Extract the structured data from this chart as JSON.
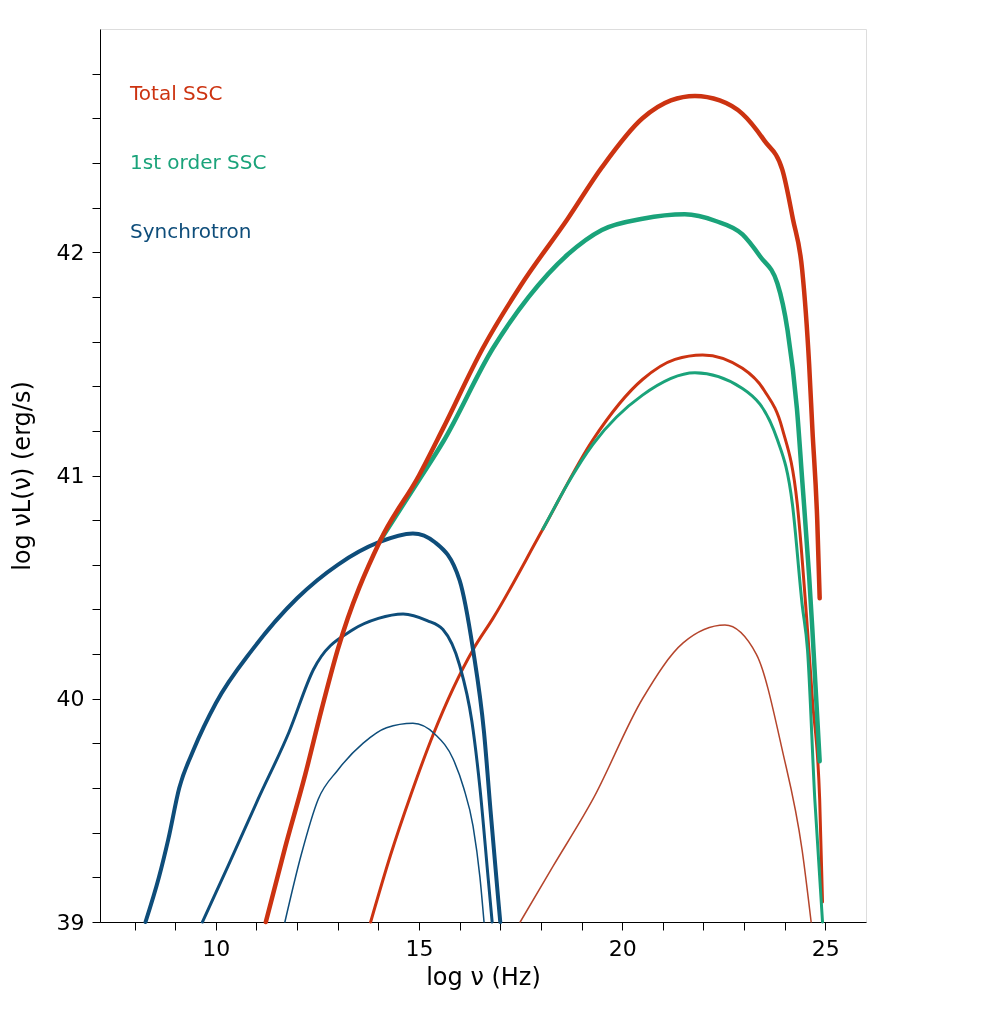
{
  "chart_data": {
    "type": "line",
    "xlabel": "log ν (Hz)",
    "ylabel": "log νL(ν) (erg/s)",
    "xlim": [
      7.15,
      26
    ],
    "ylim": [
      39,
      43
    ],
    "xticks": [
      {
        "value": 8,
        "label": null
      },
      {
        "value": 9,
        "label": null
      },
      10,
      {
        "value": 11,
        "label": null
      },
      {
        "value": 12,
        "label": null
      },
      {
        "value": 13,
        "label": null
      },
      {
        "value": 14,
        "label": null
      },
      15,
      {
        "value": 16,
        "label": null
      },
      {
        "value": 17,
        "label": null
      },
      {
        "value": 18,
        "label": null
      },
      {
        "value": 19,
        "label": null
      },
      20,
      {
        "value": 21,
        "label": null
      },
      {
        "value": 22,
        "label": null
      },
      {
        "value": 23,
        "label": null
      },
      {
        "value": 24,
        "label": null
      },
      25
    ],
    "yticks": [
      39,
      {
        "value": 39.2,
        "label": null
      },
      {
        "value": 39.4,
        "label": null
      },
      {
        "value": 39.6,
        "label": null
      },
      {
        "value": 39.8,
        "label": null
      },
      40,
      {
        "value": 40.2,
        "label": null
      },
      {
        "value": 40.4,
        "label": null
      },
      {
        "value": 40.6,
        "label": null
      },
      {
        "value": 40.8,
        "label": null
      },
      41,
      {
        "value": 41.2,
        "label": null
      },
      {
        "value": 41.4,
        "label": null
      },
      {
        "value": 41.6,
        "label": null
      },
      {
        "value": 41.8,
        "label": null
      },
      42,
      {
        "value": 42.2,
        "label": null
      },
      {
        "value": 42.4,
        "label": null
      },
      {
        "value": 42.6,
        "label": null
      },
      {
        "value": 42.8,
        "label": null
      }
    ],
    "grid": false,
    "legend": "top left",
    "marker": "none",
    "line_style": "solid",
    "series": [
      {
        "name": "Total SSC",
        "color": "#cc3311",
        "x": [
          11.23,
          11.7,
          12.2,
          12.6,
          13.0,
          14.05,
          15.0,
          15.59,
          16.57,
          17.5,
          18.66,
          19.5,
          20.5,
          21.2,
          21.79,
          22.4,
          22.96,
          23.5,
          23.94,
          24.2,
          24.43,
          24.6,
          24.68,
          24.8,
          24.86
        ],
        "values": [
          39,
          39.33,
          39.66,
          39.95,
          40.22,
          40.71,
          41.0,
          41.21,
          41.57,
          41.85,
          42.15,
          42.38,
          42.6,
          42.68,
          42.7,
          42.68,
          42.62,
          42.5,
          42.37,
          42.15,
          41.92,
          41.5,
          41.21,
          40.8,
          40.45
        ]
      },
      {
        "name": "1st order SSC",
        "color": "#1aa37a",
        "x": [
          14.05,
          15.0,
          15.59,
          16.82,
          17.7,
          18.66,
          19.5,
          20.5,
          21.54,
          22.3,
          22.96,
          23.4,
          23.82,
          24.07,
          24.3,
          24.43,
          24.6,
          24.68,
          24.86
        ],
        "values": [
          40.71,
          40.98,
          41.15,
          41.57,
          41.8,
          41.99,
          42.1,
          42.15,
          42.17,
          42.14,
          42.08,
          41.98,
          41.86,
          41.65,
          41.3,
          40.98,
          40.55,
          40.31,
          39.72
        ]
      },
      {
        "name": "Synchrotron",
        "color": "#0e4d7a",
        "x": [
          8.27,
          8.6,
          8.83,
          9.1,
          9.45,
          10.0,
          10.9,
          12.0,
          13.0,
          14.0,
          14.85,
          15.4,
          16.0,
          16.33,
          16.6,
          16.76,
          16.95,
          17.0
        ],
        "values": [
          39,
          39.2,
          39.37,
          39.6,
          39.77,
          39.98,
          40.22,
          40.45,
          40.6,
          40.7,
          40.74,
          40.7,
          40.53,
          40.22,
          39.85,
          39.5,
          39.1,
          39
        ]
      },
      {
        "color": "#0e4d7a",
        "x": [
          9.67,
          10.3,
          11.04,
          11.8,
          12.4,
          13.38,
          14.0,
          14.61,
          15.2,
          15.59,
          16.0,
          16.3,
          16.5,
          16.7,
          16.8
        ],
        "values": [
          39,
          39.25,
          39.55,
          39.85,
          40.13,
          40.31,
          40.36,
          40.38,
          40.35,
          40.31,
          40.15,
          39.9,
          39.6,
          39.2,
          39
        ]
      },
      {
        "color": "#0e4d7a",
        "x": [
          11.7,
          12.1,
          12.52,
          13.0,
          13.62,
          14.2,
          14.85,
          15.4,
          15.84,
          16.1,
          16.33,
          16.5,
          16.6
        ],
        "values": [
          39,
          39.3,
          39.55,
          39.68,
          39.8,
          39.87,
          39.89,
          39.84,
          39.73,
          39.6,
          39.43,
          39.2,
          39
        ]
      },
      {
        "color": "#1aa37a",
        "x": [
          18.05,
          19.28,
          20.5,
          21.79,
          22.96,
          23.82,
          24.19,
          24.43,
          24.56,
          24.74,
          24.93
        ],
        "values": [
          40.76,
          41.14,
          41.36,
          41.46,
          41.39,
          41.16,
          40.87,
          40.42,
          40.22,
          39.55,
          39.0
        ]
      },
      {
        "color": "#cc3311",
        "x": [
          13.81,
          14.3,
          14.8,
          15.35,
          16.33,
          16.82,
          18.05,
          19.28,
          20.5,
          21.3,
          21.98,
          22.96,
          23.5,
          23.94,
          24.31,
          24.56,
          24.68,
          24.86,
          24.93
        ],
        "values": [
          39,
          39.3,
          39.57,
          39.84,
          40.22,
          40.36,
          40.76,
          41.16,
          41.43,
          41.52,
          41.54,
          41.48,
          41.38,
          41.21,
          40.87,
          40.31,
          40.0,
          39.55,
          39.09
        ]
      },
      {
        "color": "#b5452c",
        "x": [
          17.49,
          18.3,
          19.28,
          20.5,
          21.5,
          22.53,
          23.3,
          23.94,
          24.43,
          24.65
        ],
        "values": [
          39,
          39.25,
          39.55,
          40.0,
          40.25,
          40.33,
          40.2,
          39.77,
          39.32,
          39
        ]
      }
    ]
  }
}
